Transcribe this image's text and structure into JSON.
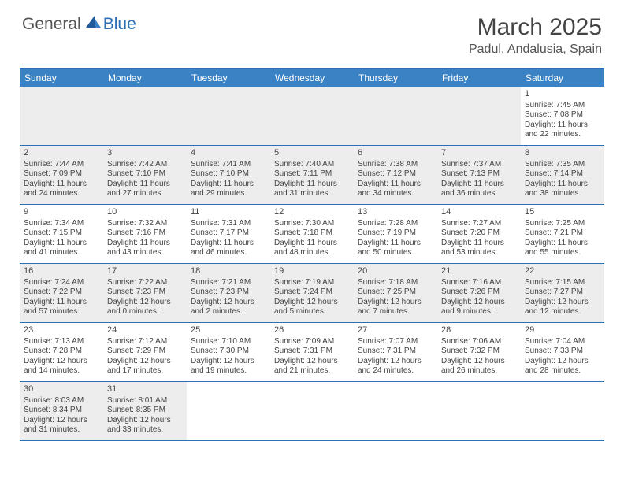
{
  "brand": {
    "left": "General",
    "right": "Blue"
  },
  "title": "March 2025",
  "location": "Padul, Andalusia, Spain",
  "colors": {
    "header_bg": "#3b82c4",
    "border": "#2b6fb6",
    "shade": "#ededed",
    "text": "#444444"
  },
  "weekdays": [
    "Sunday",
    "Monday",
    "Tuesday",
    "Wednesday",
    "Thursday",
    "Friday",
    "Saturday"
  ],
  "weeks": [
    [
      {
        "blank": true,
        "shaded": true
      },
      {
        "blank": true,
        "shaded": true
      },
      {
        "blank": true,
        "shaded": true
      },
      {
        "blank": true,
        "shaded": true
      },
      {
        "blank": true,
        "shaded": true
      },
      {
        "blank": true,
        "shaded": true
      },
      {
        "day": "1",
        "sunrise": "Sunrise: 7:45 AM",
        "sunset": "Sunset: 7:08 PM",
        "daylight": "Daylight: 11 hours and 22 minutes.",
        "shaded": false
      }
    ],
    [
      {
        "day": "2",
        "sunrise": "Sunrise: 7:44 AM",
        "sunset": "Sunset: 7:09 PM",
        "daylight": "Daylight: 11 hours and 24 minutes.",
        "shaded": true
      },
      {
        "day": "3",
        "sunrise": "Sunrise: 7:42 AM",
        "sunset": "Sunset: 7:10 PM",
        "daylight": "Daylight: 11 hours and 27 minutes.",
        "shaded": true
      },
      {
        "day": "4",
        "sunrise": "Sunrise: 7:41 AM",
        "sunset": "Sunset: 7:10 PM",
        "daylight": "Daylight: 11 hours and 29 minutes.",
        "shaded": true
      },
      {
        "day": "5",
        "sunrise": "Sunrise: 7:40 AM",
        "sunset": "Sunset: 7:11 PM",
        "daylight": "Daylight: 11 hours and 31 minutes.",
        "shaded": true
      },
      {
        "day": "6",
        "sunrise": "Sunrise: 7:38 AM",
        "sunset": "Sunset: 7:12 PM",
        "daylight": "Daylight: 11 hours and 34 minutes.",
        "shaded": true
      },
      {
        "day": "7",
        "sunrise": "Sunrise: 7:37 AM",
        "sunset": "Sunset: 7:13 PM",
        "daylight": "Daylight: 11 hours and 36 minutes.",
        "shaded": true
      },
      {
        "day": "8",
        "sunrise": "Sunrise: 7:35 AM",
        "sunset": "Sunset: 7:14 PM",
        "daylight": "Daylight: 11 hours and 38 minutes.",
        "shaded": true
      }
    ],
    [
      {
        "day": "9",
        "sunrise": "Sunrise: 7:34 AM",
        "sunset": "Sunset: 7:15 PM",
        "daylight": "Daylight: 11 hours and 41 minutes.",
        "shaded": false
      },
      {
        "day": "10",
        "sunrise": "Sunrise: 7:32 AM",
        "sunset": "Sunset: 7:16 PM",
        "daylight": "Daylight: 11 hours and 43 minutes.",
        "shaded": false
      },
      {
        "day": "11",
        "sunrise": "Sunrise: 7:31 AM",
        "sunset": "Sunset: 7:17 PM",
        "daylight": "Daylight: 11 hours and 46 minutes.",
        "shaded": false
      },
      {
        "day": "12",
        "sunrise": "Sunrise: 7:30 AM",
        "sunset": "Sunset: 7:18 PM",
        "daylight": "Daylight: 11 hours and 48 minutes.",
        "shaded": false
      },
      {
        "day": "13",
        "sunrise": "Sunrise: 7:28 AM",
        "sunset": "Sunset: 7:19 PM",
        "daylight": "Daylight: 11 hours and 50 minutes.",
        "shaded": false
      },
      {
        "day": "14",
        "sunrise": "Sunrise: 7:27 AM",
        "sunset": "Sunset: 7:20 PM",
        "daylight": "Daylight: 11 hours and 53 minutes.",
        "shaded": false
      },
      {
        "day": "15",
        "sunrise": "Sunrise: 7:25 AM",
        "sunset": "Sunset: 7:21 PM",
        "daylight": "Daylight: 11 hours and 55 minutes.",
        "shaded": false
      }
    ],
    [
      {
        "day": "16",
        "sunrise": "Sunrise: 7:24 AM",
        "sunset": "Sunset: 7:22 PM",
        "daylight": "Daylight: 11 hours and 57 minutes.",
        "shaded": true
      },
      {
        "day": "17",
        "sunrise": "Sunrise: 7:22 AM",
        "sunset": "Sunset: 7:23 PM",
        "daylight": "Daylight: 12 hours and 0 minutes.",
        "shaded": true
      },
      {
        "day": "18",
        "sunrise": "Sunrise: 7:21 AM",
        "sunset": "Sunset: 7:23 PM",
        "daylight": "Daylight: 12 hours and 2 minutes.",
        "shaded": true
      },
      {
        "day": "19",
        "sunrise": "Sunrise: 7:19 AM",
        "sunset": "Sunset: 7:24 PM",
        "daylight": "Daylight: 12 hours and 5 minutes.",
        "shaded": true
      },
      {
        "day": "20",
        "sunrise": "Sunrise: 7:18 AM",
        "sunset": "Sunset: 7:25 PM",
        "daylight": "Daylight: 12 hours and 7 minutes.",
        "shaded": true
      },
      {
        "day": "21",
        "sunrise": "Sunrise: 7:16 AM",
        "sunset": "Sunset: 7:26 PM",
        "daylight": "Daylight: 12 hours and 9 minutes.",
        "shaded": true
      },
      {
        "day": "22",
        "sunrise": "Sunrise: 7:15 AM",
        "sunset": "Sunset: 7:27 PM",
        "daylight": "Daylight: 12 hours and 12 minutes.",
        "shaded": true
      }
    ],
    [
      {
        "day": "23",
        "sunrise": "Sunrise: 7:13 AM",
        "sunset": "Sunset: 7:28 PM",
        "daylight": "Daylight: 12 hours and 14 minutes.",
        "shaded": false
      },
      {
        "day": "24",
        "sunrise": "Sunrise: 7:12 AM",
        "sunset": "Sunset: 7:29 PM",
        "daylight": "Daylight: 12 hours and 17 minutes.",
        "shaded": false
      },
      {
        "day": "25",
        "sunrise": "Sunrise: 7:10 AM",
        "sunset": "Sunset: 7:30 PM",
        "daylight": "Daylight: 12 hours and 19 minutes.",
        "shaded": false
      },
      {
        "day": "26",
        "sunrise": "Sunrise: 7:09 AM",
        "sunset": "Sunset: 7:31 PM",
        "daylight": "Daylight: 12 hours and 21 minutes.",
        "shaded": false
      },
      {
        "day": "27",
        "sunrise": "Sunrise: 7:07 AM",
        "sunset": "Sunset: 7:31 PM",
        "daylight": "Daylight: 12 hours and 24 minutes.",
        "shaded": false
      },
      {
        "day": "28",
        "sunrise": "Sunrise: 7:06 AM",
        "sunset": "Sunset: 7:32 PM",
        "daylight": "Daylight: 12 hours and 26 minutes.",
        "shaded": false
      },
      {
        "day": "29",
        "sunrise": "Sunrise: 7:04 AM",
        "sunset": "Sunset: 7:33 PM",
        "daylight": "Daylight: 12 hours and 28 minutes.",
        "shaded": false
      }
    ],
    [
      {
        "day": "30",
        "sunrise": "Sunrise: 8:03 AM",
        "sunset": "Sunset: 8:34 PM",
        "daylight": "Daylight: 12 hours and 31 minutes.",
        "shaded": true
      },
      {
        "day": "31",
        "sunrise": "Sunrise: 8:01 AM",
        "sunset": "Sunset: 8:35 PM",
        "daylight": "Daylight: 12 hours and 33 minutes.",
        "shaded": true
      },
      {
        "blank": true,
        "shaded": false
      },
      {
        "blank": true,
        "shaded": false
      },
      {
        "blank": true,
        "shaded": false
      },
      {
        "blank": true,
        "shaded": false
      },
      {
        "blank": true,
        "shaded": false
      }
    ]
  ]
}
